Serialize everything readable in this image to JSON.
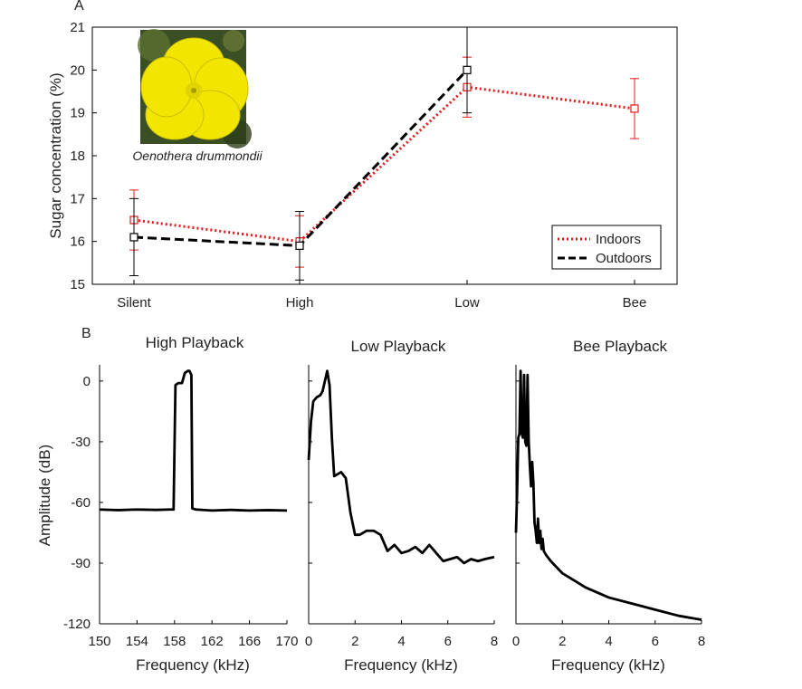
{
  "panel_a": {
    "panel_label": "A",
    "photo_caption": "Oenothera drummondii",
    "photo_icon": "flower-photo",
    "colors": {
      "indoors": "#e41a1c",
      "outdoors": "#000000"
    }
  },
  "panel_b": {
    "panel_label": "B"
  },
  "chart_data": [
    {
      "type": "line",
      "title": "",
      "xlabel": "",
      "ylabel": "Sugar concentration (%)",
      "categories": [
        "Silent",
        "High",
        "Low",
        "Bee"
      ],
      "ylim": [
        15,
        21
      ],
      "yticks": [
        15,
        16,
        17,
        18,
        19,
        20,
        21
      ],
      "legend_position": "bottom-right",
      "series": [
        {
          "name": "Indoors",
          "color": "#e41a1c",
          "style": "dotted",
          "values": [
            16.5,
            16.0,
            19.6,
            19.1
          ],
          "err_low": [
            15.8,
            15.4,
            18.9,
            18.4
          ],
          "err_high": [
            17.2,
            16.6,
            20.3,
            19.8
          ]
        },
        {
          "name": "Outdoors",
          "color": "#000000",
          "style": "dashed",
          "values": [
            16.1,
            15.9,
            20.0,
            null
          ],
          "err_low": [
            15.2,
            15.1,
            19.0,
            null
          ],
          "err_high": [
            17.0,
            16.7,
            21.0,
            null
          ]
        }
      ]
    },
    {
      "type": "line",
      "title": "High Playback",
      "xlabel": "Frequency (kHz)",
      "ylabel": "Amplitude (dB)",
      "xlim": [
        150,
        170
      ],
      "xticks": [
        150,
        154,
        158,
        162,
        166,
        170
      ],
      "ylim": [
        -120,
        8
      ],
      "yticks": [
        0,
        -30,
        -60,
        -90,
        -120
      ],
      "x": [
        150,
        152,
        154,
        156,
        157.5,
        157.9,
        158.1,
        158.4,
        158.8,
        159.1,
        159.4,
        159.6,
        159.8,
        159.9,
        160.3,
        162,
        164,
        166,
        168,
        170
      ],
      "y": [
        -63.5,
        -63.8,
        -63.5,
        -63.7,
        -63.5,
        -63.5,
        -2,
        -1,
        -1,
        4,
        5,
        5,
        3,
        -63,
        -63.5,
        -64,
        -63.7,
        -64,
        -63.8,
        -64
      ]
    },
    {
      "type": "line",
      "title": "Low Playback",
      "xlabel": "Frequency (kHz)",
      "ylabel": "",
      "xlim": [
        0,
        8
      ],
      "xticks": [
        0,
        2,
        4,
        6,
        8
      ],
      "ylim": [
        -120,
        8
      ],
      "yticks": [
        0,
        -30,
        -60,
        -90,
        -120
      ],
      "x": [
        0,
        0.1,
        0.2,
        0.35,
        0.5,
        0.6,
        0.7,
        0.8,
        0.9,
        1.0,
        1.1,
        1.25,
        1.4,
        1.6,
        1.8,
        2.0,
        2.2,
        2.5,
        2.8,
        3.1,
        3.4,
        3.7,
        4.0,
        4.3,
        4.6,
        4.9,
        5.2,
        5.5,
        5.8,
        6.1,
        6.4,
        6.7,
        7.0,
        7.3,
        7.6,
        8.0
      ],
      "y": [
        -39,
        -20,
        -10,
        -8,
        -7,
        -5,
        0,
        5,
        -2,
        -28,
        -47,
        -46,
        -45,
        -48,
        -65,
        -76,
        -76,
        -74,
        -74,
        -76,
        -84,
        -81,
        -85,
        -84,
        -82,
        -85,
        -81,
        -85,
        -89,
        -88,
        -87,
        -90,
        -88,
        -89,
        -88,
        -87
      ]
    },
    {
      "type": "line",
      "title": "Bee Playback",
      "xlabel": "Frequency (kHz)",
      "ylabel": "",
      "xlim": [
        0,
        8
      ],
      "xticks": [
        0,
        2,
        4,
        6,
        8
      ],
      "ylim": [
        -120,
        8
      ],
      "yticks": [
        0,
        -30,
        -60,
        -90,
        -120
      ],
      "x": [
        0,
        0.05,
        0.1,
        0.15,
        0.2,
        0.25,
        0.3,
        0.35,
        0.4,
        0.45,
        0.5,
        0.55,
        0.6,
        0.65,
        0.7,
        0.75,
        0.8,
        0.85,
        0.9,
        0.95,
        1.0,
        1.05,
        1.1,
        1.15,
        1.2,
        1.3,
        1.5,
        2,
        3,
        4,
        5,
        6,
        7,
        8
      ],
      "y": [
        -75,
        -55,
        -28,
        -26,
        5,
        -26,
        -28,
        3,
        -30,
        -32,
        3,
        -30,
        -42,
        -52,
        -40,
        -50,
        -70,
        -74,
        -80,
        -68,
        -80,
        -74,
        -83,
        -78,
        -84,
        -86,
        -89,
        -95,
        -102,
        -107,
        -110,
        -113,
        -116,
        -118
      ]
    }
  ]
}
